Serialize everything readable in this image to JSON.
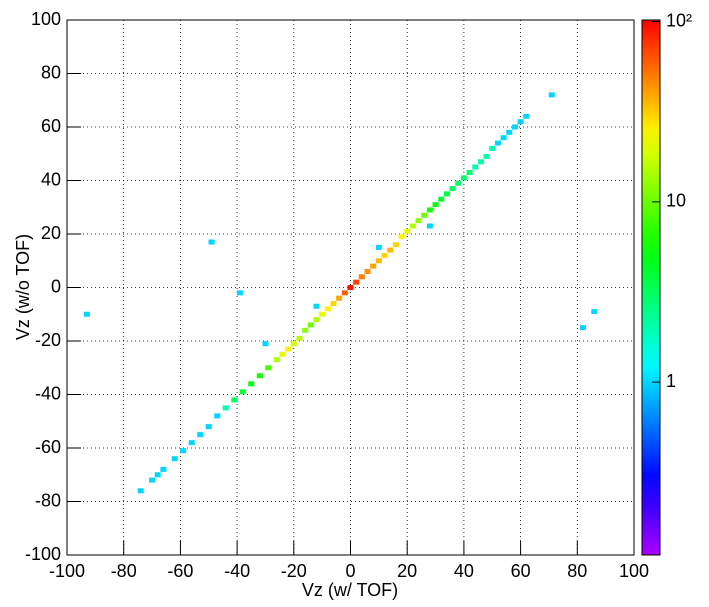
{
  "chart_data": {
    "type": "heatmap",
    "x_label": "Vz (w/ TOF)",
    "y_label": "Vz (w/o TOF)",
    "xlim": [
      -100,
      100
    ],
    "ylim": [
      -100,
      100
    ],
    "xticks": [
      -100,
      -80,
      -60,
      -40,
      -20,
      0,
      20,
      40,
      60,
      80,
      100
    ],
    "yticks": [
      -100,
      -80,
      -60,
      -40,
      -20,
      0,
      20,
      40,
      60,
      80,
      100
    ],
    "grid": true,
    "log_color_scale": true,
    "zlim": [
      0.11,
      102
    ],
    "zticks": [
      1,
      10,
      {
        "value": 100,
        "label": "10²"
      }
    ],
    "x": [
      -74,
      -70,
      -68,
      -66,
      -62,
      -59,
      -56,
      -53,
      -50,
      -47,
      -44,
      -41,
      -38,
      -35,
      -32,
      -29,
      -26,
      -24,
      -22,
      -20,
      -18,
      -16,
      -14,
      -12,
      -10,
      -8,
      -6,
      -4,
      -2,
      0,
      2,
      4,
      6,
      8,
      10,
      12,
      14,
      16,
      18,
      20,
      22,
      24,
      26,
      28,
      30,
      32,
      34,
      36,
      38,
      40,
      42,
      44,
      46,
      48,
      50,
      52,
      54,
      56,
      58,
      60,
      62,
      -93,
      -49,
      -39,
      71,
      86,
      82,
      10,
      -30,
      28,
      -12
    ],
    "y": [
      -76,
      -72,
      -70,
      -68,
      -64,
      -61,
      -58,
      -55,
      -52,
      -48,
      -45,
      -42,
      -39,
      -36,
      -33,
      -30,
      -27,
      -25,
      -23,
      -21,
      -19,
      -16,
      -14,
      -12,
      -10,
      -8,
      -6,
      -4,
      -2,
      0,
      2,
      4,
      6,
      8,
      10,
      12,
      14,
      16,
      19,
      21,
      23,
      25,
      27,
      29,
      31,
      33,
      35,
      37,
      39,
      41,
      43,
      45,
      47,
      49,
      52,
      54,
      56,
      58,
      60,
      62,
      64,
      -10,
      17,
      -2,
      72,
      -9,
      -15,
      15,
      -21,
      23,
      -7
    ],
    "z": [
      1,
      1,
      1,
      1,
      1,
      1,
      1,
      1,
      1,
      1,
      2,
      3,
      4,
      5,
      6,
      8,
      15,
      20,
      25,
      18,
      15,
      12,
      10,
      15,
      20,
      25,
      30,
      40,
      60,
      90,
      70,
      50,
      45,
      40,
      35,
      30,
      35,
      30,
      25,
      20,
      15,
      12,
      10,
      6,
      5,
      4,
      4,
      3,
      3,
      3,
      3,
      2,
      2,
      2,
      2,
      1,
      1,
      1,
      1,
      1,
      1,
      1,
      1,
      1,
      1,
      1,
      1,
      1,
      1,
      1,
      1
    ]
  }
}
